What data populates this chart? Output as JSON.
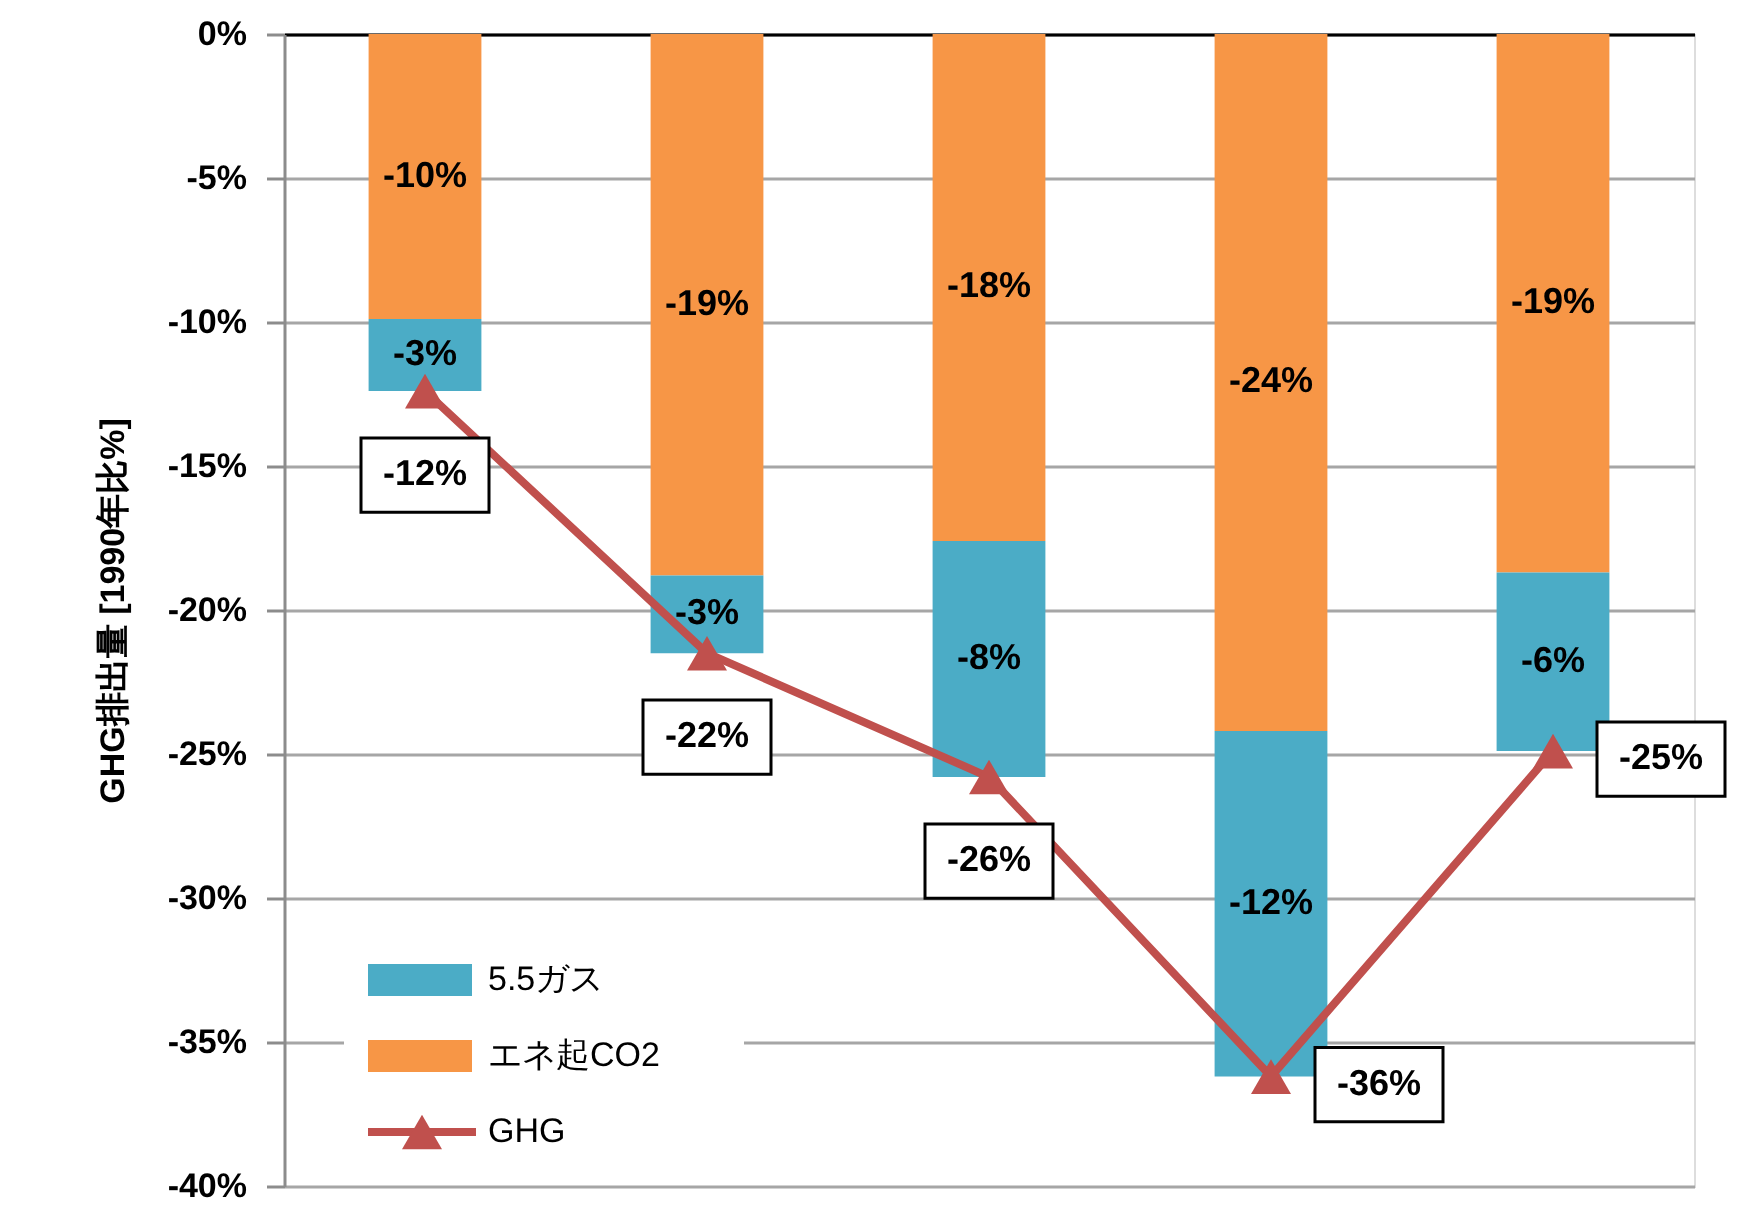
{
  "chart_data": {
    "type": "bar",
    "stacked": true,
    "categories": [
      null,
      null,
      null,
      null,
      null
    ],
    "ylabel": "GHG排出量 [1990年比%]",
    "ylim": [
      -40,
      0
    ],
    "yticks": [
      {
        "value": 0,
        "label": "0%"
      },
      {
        "value": -5,
        "label": "-5%"
      },
      {
        "value": -10,
        "label": "-10%"
      },
      {
        "value": -15,
        "label": "-15%"
      },
      {
        "value": -20,
        "label": "-20%"
      },
      {
        "value": -25,
        "label": "-25%"
      },
      {
        "value": -30,
        "label": "-30%"
      },
      {
        "value": -35,
        "label": "-35%"
      },
      {
        "value": -40,
        "label": "-40%"
      }
    ],
    "grid": "y",
    "legend": "bottom left",
    "series": [
      {
        "name": "エネ起CO2",
        "color": "#f79646",
        "values": [
          -9.9,
          -18.8,
          -17.6,
          -24.2,
          -18.7
        ],
        "value_labels": [
          "-10%",
          "-19%",
          "-18%",
          "-24%",
          "-19%"
        ]
      },
      {
        "name": "5.5ガス",
        "color": "#4bacc6",
        "values": [
          -2.5,
          -2.7,
          -8.2,
          -12.0,
          -6.2
        ],
        "value_labels": [
          "-3%",
          "-3%",
          "-8%",
          "-12%",
          "-6%"
        ]
      },
      {
        "name": "GHG",
        "type": "line",
        "color": "#c0504d",
        "marker": "triangle",
        "line_style": "solid",
        "values": [
          -12.4,
          -21.5,
          -25.8,
          -36.2,
          -24.9
        ],
        "value_labels": [
          "-12%",
          "-22%",
          "-26%",
          "-36%",
          "-25%"
        ]
      }
    ]
  }
}
